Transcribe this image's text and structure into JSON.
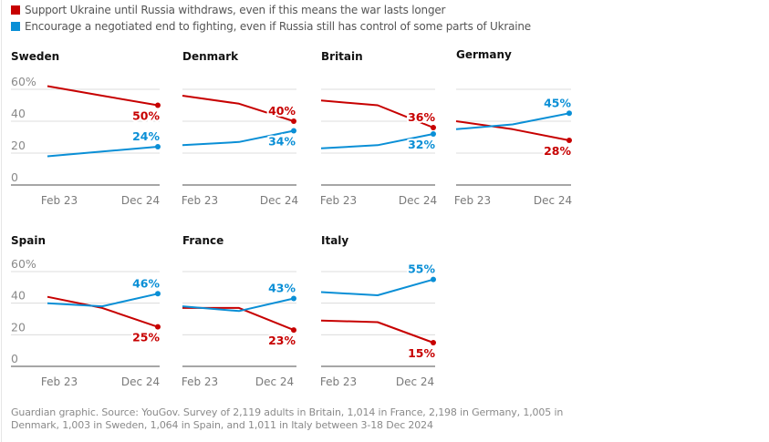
{
  "legend": [
    {
      "label": "Support Ukraine until Russia withdraws, even if this means the war lasts longer",
      "color": "#c70000"
    },
    {
      "label": "Encourage a negotiated end to fighting, even if Russia still has control of some parts of Ukraine",
      "color": "#0a8fd6"
    }
  ],
  "footnote": "Guardian graphic. Source: YouGov. Survey of 2,119 adults in Britain, 1,014 in France, 2,198 in Germany, 1,005 in Denmark, 1,003 in Sweden, 1,064 in Spain, and 1,011 in Italy between 3-18 Dec 2024",
  "chart_data": [
    {
      "type": "line",
      "title": "Sweden",
      "x": [
        "Feb 23",
        "mid",
        "Dec 24"
      ],
      "xticks": [
        "Feb 23",
        "Dec 24"
      ],
      "yticks": [
        "0",
        "20",
        "40",
        "60%"
      ],
      "ylim": [
        0,
        60
      ],
      "show_yticks": true,
      "series": [
        {
          "name": "Support Ukraine until Russia withdraws",
          "color": "#c70000",
          "values": [
            62,
            56,
            50
          ],
          "end_label": "50%",
          "label_pos": "below"
        },
        {
          "name": "Encourage a negotiated end to fighting",
          "color": "#0a8fd6",
          "values": [
            18,
            21,
            24
          ],
          "end_label": "24%",
          "label_pos": "above"
        }
      ]
    },
    {
      "type": "line",
      "title": "Denmark",
      "x": [
        "Feb 23",
        "mid",
        "Dec 24"
      ],
      "xticks": [
        "Feb 23",
        "Dec 24"
      ],
      "yticks": [
        "0",
        "20",
        "40",
        "60%"
      ],
      "ylim": [
        0,
        60
      ],
      "show_yticks": false,
      "series": [
        {
          "name": "Support Ukraine until Russia withdraws",
          "color": "#c70000",
          "values": [
            56,
            51,
            40
          ],
          "end_label": "40%",
          "label_pos": "above"
        },
        {
          "name": "Encourage a negotiated end to fighting",
          "color": "#0a8fd6",
          "values": [
            25,
            27,
            34
          ],
          "end_label": "34%",
          "label_pos": "below"
        }
      ]
    },
    {
      "type": "line",
      "title": "Britain",
      "x": [
        "Feb 23",
        "mid",
        "Dec 24"
      ],
      "xticks": [
        "Feb 23",
        "Dec 24"
      ],
      "yticks": [
        "0",
        "20",
        "40",
        "60%"
      ],
      "ylim": [
        0,
        60
      ],
      "show_yticks": false,
      "series": [
        {
          "name": "Support Ukraine until Russia withdraws",
          "color": "#c70000",
          "values": [
            53,
            50,
            36
          ],
          "end_label": "36%",
          "label_pos": "above"
        },
        {
          "name": "Encourage a negotiated end to fighting",
          "color": "#0a8fd6",
          "values": [
            23,
            25,
            32
          ],
          "end_label": "32%",
          "label_pos": "below"
        }
      ]
    },
    {
      "type": "line",
      "title": "Germany",
      "x": [
        "Feb 23",
        "mid",
        "Dec 24"
      ],
      "xticks": [
        "Feb 23",
        "Dec 24"
      ],
      "yticks": [
        "0",
        "20",
        "40",
        "60%"
      ],
      "ylim": [
        0,
        60
      ],
      "show_yticks": false,
      "series": [
        {
          "name": "Support Ukraine until Russia withdraws",
          "color": "#c70000",
          "values": [
            40,
            35,
            28
          ],
          "end_label": "28%",
          "label_pos": "below"
        },
        {
          "name": "Encourage a negotiated end to fighting",
          "color": "#0a8fd6",
          "values": [
            35,
            38,
            45
          ],
          "end_label": "45%",
          "label_pos": "above"
        }
      ]
    },
    {
      "type": "line",
      "title": "Spain",
      "x": [
        "Feb 23",
        "mid",
        "Dec 24"
      ],
      "xticks": [
        "Feb 23",
        "Dec 24"
      ],
      "yticks": [
        "0",
        "20",
        "40",
        "60%"
      ],
      "ylim": [
        0,
        60
      ],
      "show_yticks": true,
      "series": [
        {
          "name": "Support Ukraine until Russia withdraws",
          "color": "#c70000",
          "values": [
            44,
            37,
            25
          ],
          "end_label": "25%",
          "label_pos": "below"
        },
        {
          "name": "Encourage a negotiated end to fighting",
          "color": "#0a8fd6",
          "values": [
            40,
            38,
            46
          ],
          "end_label": "46%",
          "label_pos": "above"
        }
      ]
    },
    {
      "type": "line",
      "title": "France",
      "x": [
        "Feb 23",
        "mid",
        "Dec 24"
      ],
      "xticks": [
        "Feb 23",
        "Dec 24"
      ],
      "yticks": [
        "0",
        "20",
        "40",
        "60%"
      ],
      "ylim": [
        0,
        60
      ],
      "show_yticks": false,
      "series": [
        {
          "name": "Support Ukraine until Russia withdraws",
          "color": "#c70000",
          "values": [
            37,
            37,
            23
          ],
          "end_label": "23%",
          "label_pos": "below"
        },
        {
          "name": "Encourage a negotiated end to fighting",
          "color": "#0a8fd6",
          "values": [
            38,
            35,
            43
          ],
          "end_label": "43%",
          "label_pos": "above"
        }
      ]
    },
    {
      "type": "line",
      "title": "Italy",
      "x": [
        "Feb 23",
        "mid",
        "Dec 24"
      ],
      "xticks": [
        "Feb 23",
        "Dec 24"
      ],
      "yticks": [
        "0",
        "20",
        "40",
        "60%"
      ],
      "ylim": [
        0,
        60
      ],
      "show_yticks": false,
      "series": [
        {
          "name": "Support Ukraine until Russia withdraws",
          "color": "#c70000",
          "values": [
            29,
            28,
            15
          ],
          "end_label": "15%",
          "label_pos": "below"
        },
        {
          "name": "Encourage a negotiated end to fighting",
          "color": "#0a8fd6",
          "values": [
            47,
            45,
            55
          ],
          "end_label": "55%",
          "label_pos": "above"
        }
      ]
    }
  ]
}
